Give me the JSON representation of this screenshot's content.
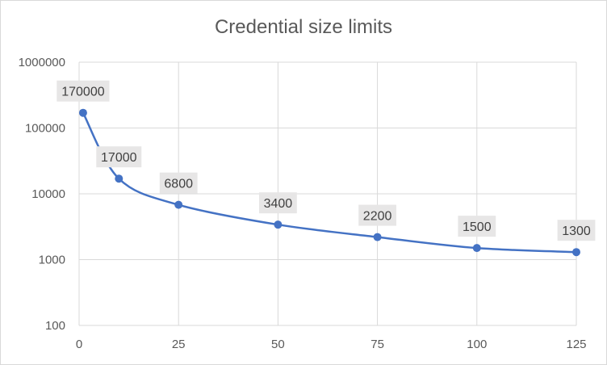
{
  "chart_data": {
    "type": "line",
    "title": "Credential size limits",
    "xlabel": "",
    "ylabel": "",
    "x_scale": "linear",
    "y_scale": "log",
    "xlim": [
      0,
      125
    ],
    "ylim": [
      100,
      1000000
    ],
    "x_ticks": [
      "0",
      "25",
      "50",
      "75",
      "100",
      "125"
    ],
    "y_ticks": [
      "100",
      "1000",
      "10000",
      "100000",
      "1000000"
    ],
    "grid": true,
    "legend": "none",
    "line_style": "smoothed",
    "series_color": "#4472c4",
    "series": [
      {
        "name": "",
        "x": [
          1,
          10,
          25,
          50,
          75,
          100,
          125
        ],
        "y": [
          170000,
          17000,
          6800,
          3400,
          2200,
          1500,
          1300
        ],
        "labels": [
          "170000",
          "17000",
          "6800",
          "3400",
          "2200",
          "1500",
          "1300"
        ]
      }
    ]
  }
}
